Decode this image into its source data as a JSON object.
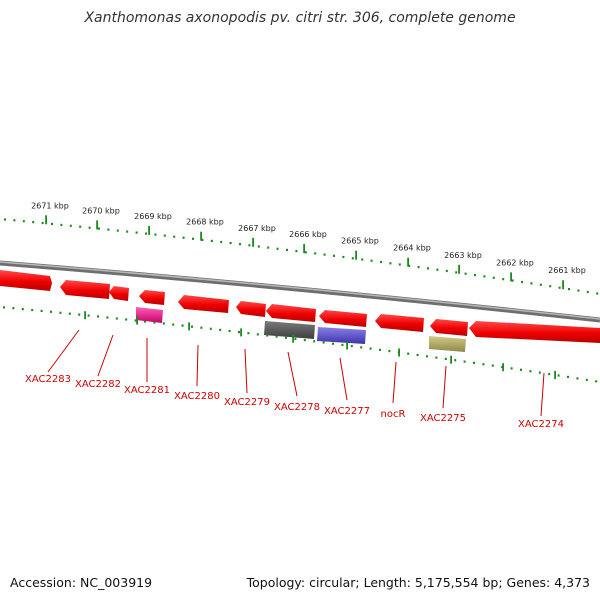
{
  "title": "Xanthomonas axonopodis pv. citri str. 306, complete genome",
  "footer": {
    "accession": "Accession: NC_003919",
    "summary": "Topology: circular; Length: 5,175,554 bp; Genes: 4,373"
  },
  "scale_labels": [
    {
      "text": "2671 kbp",
      "kbp": 2671
    },
    {
      "text": "2670 kbp",
      "kbp": 2670
    },
    {
      "text": "2669 kbp",
      "kbp": 2669
    },
    {
      "text": "2668 kbp",
      "kbp": 2668
    },
    {
      "text": "2667 kbp",
      "kbp": 2667
    },
    {
      "text": "2666 kbp",
      "kbp": 2666
    },
    {
      "text": "2665 kbp",
      "kbp": 2665
    },
    {
      "text": "2664 kbp",
      "kbp": 2664
    },
    {
      "text": "2663 kbp",
      "kbp": 2663
    },
    {
      "text": "2662 kbp",
      "kbp": 2662
    },
    {
      "text": "2661 kbp",
      "kbp": 2661
    }
  ],
  "genes": [
    {
      "name": "XAC2283",
      "color": "#ee0000"
    },
    {
      "name": "XAC2282",
      "color": "#ee0000"
    },
    {
      "name": "XAC2281",
      "color": "#ee0000"
    },
    {
      "name": "XAC2280",
      "color": "#ee0000"
    },
    {
      "name": "XAC2279",
      "color": "#ee0000"
    },
    {
      "name": "XAC2278",
      "color": "#ee0000"
    },
    {
      "name": "XAC2277",
      "color": "#ee0000"
    },
    {
      "name": "nocR",
      "color": "#ee0000"
    },
    {
      "name": "XAC2275",
      "color": "#ee0000"
    },
    {
      "name": "XAC2274",
      "color": "#ee0000"
    }
  ],
  "colors": {
    "gene_fill": "#ee0000",
    "backbone": "#8a8a8a",
    "tick": "#1a8a1a",
    "label": "#cc0000",
    "feature_pink": "#e6007e",
    "feature_dark": "#5a5a5a",
    "feature_blue": "#5c4fc8",
    "feature_olive": "#b5ad62"
  }
}
